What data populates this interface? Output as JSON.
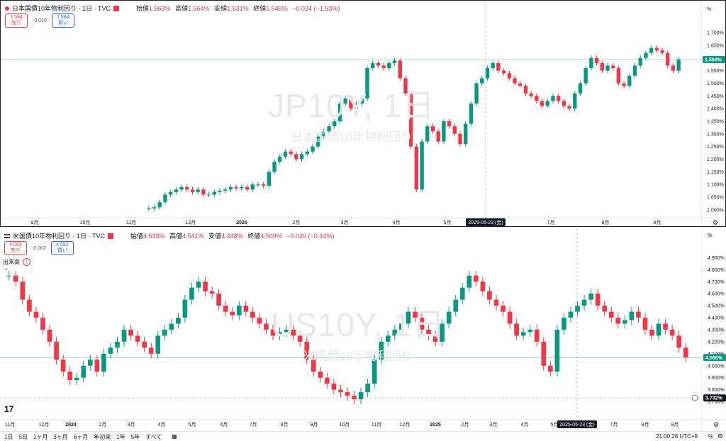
{
  "top": {
    "symbol_title": "日本国債10年物利回り · 1日 · TVC",
    "ohlc": [
      {
        "k": "始値",
        "v": "1.563%"
      },
      {
        "k": "高値",
        "v": "1.564%"
      },
      {
        "k": "安値",
        "v": "1.531%"
      },
      {
        "k": "終値",
        "v": "1.546%"
      },
      {
        "k": "",
        "v": "−0.024 (−1.53%)"
      }
    ],
    "sell": {
      "price": "1.594",
      "label": "売り"
    },
    "spread": "-0.010",
    "buy": {
      "price": "1.584",
      "label": "買い"
    },
    "watermark_big": "JP10Y, 1日",
    "watermark_small": "日本国債10年物利回り",
    "unit": "%",
    "price_labels": [
      "1.700%",
      "1.650%",
      "1.600%",
      "1.550%",
      "1.500%",
      "1.450%",
      "1.400%",
      "1.350%",
      "1.300%",
      "1.250%",
      "1.200%",
      "1.150%",
      "1.100%",
      "1.050%",
      "1.000%"
    ],
    "last_price": "1.594%",
    "date_labels": [
      "9月",
      "10月",
      "11月",
      "12月",
      "2025",
      "2月",
      "3月",
      "4月",
      "5月",
      "7月",
      "8月",
      "9月"
    ],
    "crosshair_date": "2025-05-23 (金)"
  },
  "bottom": {
    "symbol_title": "米国債10年物利回り · 1日 · TVC",
    "ohlc": [
      {
        "k": "始値",
        "v": "4.533%"
      },
      {
        "k": "高値",
        "v": "4.541%"
      },
      {
        "k": "安値",
        "v": "4.448%"
      },
      {
        "k": "終値",
        "v": "4.509%"
      },
      {
        "k": "",
        "v": "−0.020 (−0.44%)"
      }
    ],
    "sell": {
      "price": "4.094",
      "label": "売り"
    },
    "spread": "-0.002",
    "buy": {
      "price": "4.092",
      "label": "買い"
    },
    "volume_label": "出来高",
    "watermark_big": "US10Y, 1日",
    "watermark_small": "米国債10年物利回り",
    "unit": "%",
    "price_labels": [
      "4.900%",
      "4.800%",
      "4.700%",
      "4.600%",
      "4.500%",
      "4.400%",
      "4.300%",
      "4.200%",
      "4.100%",
      "4.000%",
      "3.900%",
      "3.800%",
      "3.700%"
    ],
    "last_price": "4.068%",
    "crosshair_price": "3.732%",
    "date_labels": [
      "11月",
      "12月",
      "2024",
      "2月",
      "3月",
      "4月",
      "5月",
      "6月",
      "7月",
      "8月",
      "9月",
      "10月",
      "11月",
      "12月",
      "2025",
      "2月",
      "3月",
      "4月",
      "5月",
      "7月",
      "8月",
      "9月"
    ],
    "crosshair_date": "2025-05-23 (金)"
  },
  "timeframes": [
    "1日",
    "5日",
    "1ヶ月",
    "3ヶ月",
    "6ヶ月",
    "年初来",
    "1年",
    "5年",
    "すべて"
  ],
  "clock": "21:00:28 UTC+9",
  "pct_toggle": "%",
  "tv_logo": "17",
  "colors": {
    "up": "#089981",
    "down": "#f23645",
    "last": "#089981",
    "crosshair": "#131722"
  },
  "chart_data": [
    {
      "type": "candlestick",
      "title": "JP10Y, 1日",
      "ylim": [
        0.98,
        1.72
      ],
      "series": [
        {
          "name": "日本国債10年物利回り",
          "values": [
            1.005,
            1.01,
            1.03,
            1.06,
            1.07,
            1.08,
            1.09,
            1.08,
            1.07,
            1.08,
            1.06,
            1.06,
            1.07,
            1.075,
            1.08,
            1.09,
            1.085,
            1.09,
            1.08,
            1.1,
            1.1,
            1.095,
            1.15,
            1.19,
            1.21,
            1.23,
            1.22,
            1.2,
            1.22,
            1.23,
            1.25,
            1.29,
            1.31,
            1.33,
            1.35,
            1.42,
            1.44,
            1.4,
            1.42,
            1.44,
            1.56,
            1.58,
            1.57,
            1.56,
            1.58,
            1.59,
            1.52,
            1.46,
            1.25,
            1.08,
            1.27,
            1.33,
            1.31,
            1.27,
            1.35,
            1.33,
            1.3,
            1.26,
            1.34,
            1.42,
            1.5,
            1.52,
            1.56,
            1.58,
            1.55,
            1.54,
            1.52,
            1.5,
            1.49,
            1.46,
            1.45,
            1.43,
            1.41,
            1.43,
            1.45,
            1.43,
            1.41,
            1.4,
            1.46,
            1.5,
            1.56,
            1.6,
            1.58,
            1.55,
            1.57,
            1.56,
            1.5,
            1.49,
            1.53,
            1.57,
            1.6,
            1.62,
            1.64,
            1.63,
            1.62,
            1.57,
            1.55,
            1.594
          ]
        }
      ]
    },
    {
      "type": "candlestick",
      "title": "US10Y, 1日",
      "ylim": [
        3.68,
        4.92
      ],
      "series": [
        {
          "name": "米国債10年物利回り",
          "values": [
            4.75,
            4.7,
            4.55,
            4.45,
            4.4,
            4.3,
            4.2,
            4.05,
            3.95,
            3.88,
            3.9,
            4.0,
            4.05,
            3.95,
            4.1,
            4.15,
            4.2,
            4.3,
            4.25,
            4.2,
            4.15,
            4.1,
            4.25,
            4.3,
            4.35,
            4.4,
            4.55,
            4.65,
            4.7,
            4.62,
            4.6,
            4.5,
            4.45,
            4.42,
            4.5,
            4.45,
            4.4,
            4.35,
            4.3,
            4.25,
            4.28,
            4.3,
            4.25,
            4.2,
            4.05,
            3.95,
            3.9,
            3.85,
            3.8,
            3.78,
            3.75,
            3.72,
            3.78,
            3.85,
            4.05,
            4.2,
            4.25,
            4.3,
            4.35,
            4.45,
            4.4,
            4.3,
            4.25,
            4.2,
            4.35,
            4.45,
            4.55,
            4.65,
            4.75,
            4.7,
            4.62,
            4.55,
            4.5,
            4.45,
            4.35,
            4.25,
            4.28,
            4.3,
            4.2,
            4.0,
            3.95,
            4.3,
            4.4,
            4.45,
            4.5,
            4.55,
            4.6,
            4.5,
            4.45,
            4.4,
            4.35,
            4.38,
            4.45,
            4.4,
            4.3,
            4.25,
            4.35,
            4.3,
            4.25,
            4.15,
            4.068
          ]
        }
      ]
    }
  ]
}
